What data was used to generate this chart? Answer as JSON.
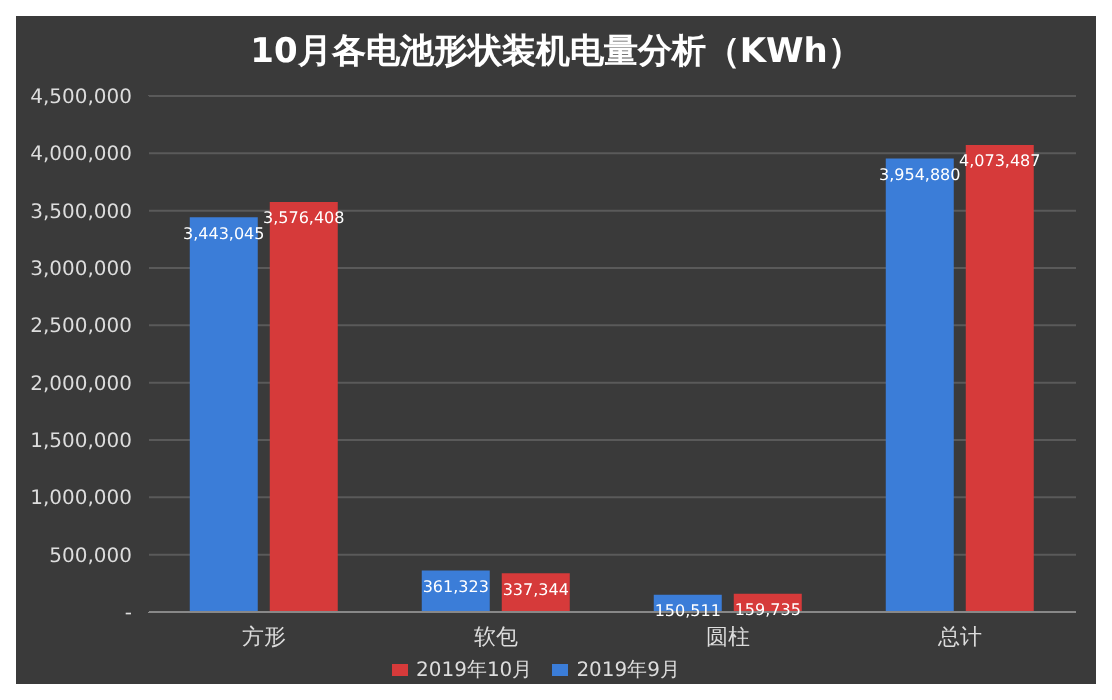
{
  "chart_data": {
    "type": "bar",
    "title": "10月各电池形状装机电量分析（KWh）",
    "categories": [
      "方形",
      "软包",
      "圆柱",
      "总计"
    ],
    "series": [
      {
        "name": "2019年9月",
        "color": "#3b7dd8",
        "values": [
          3443045,
          361323,
          150511,
          3954880
        ],
        "value_labels": [
          "3,443,045",
          "361,323",
          "150,511",
          "3,954,880"
        ]
      },
      {
        "name": "2019年10月",
        "color": "#d63a3a",
        "values": [
          3576408,
          337344,
          159735,
          4073487
        ],
        "value_labels": [
          "3,576,408",
          "337,344",
          "159,735",
          "4,073,487"
        ]
      }
    ],
    "ylim": [
      0,
      4500000
    ],
    "yticks": [
      {
        "value": 0,
        "label": "-"
      },
      {
        "value": 500000,
        "label": "500,000"
      },
      {
        "value": 1000000,
        "label": "1,000,000"
      },
      {
        "value": 1500000,
        "label": "1,500,000"
      },
      {
        "value": 2000000,
        "label": "2,000,000"
      },
      {
        "value": 2500000,
        "label": "2,500,000"
      },
      {
        "value": 3000000,
        "label": "3,000,000"
      },
      {
        "value": 3500000,
        "label": "3,500,000"
      },
      {
        "value": 4000000,
        "label": "4,000,000"
      },
      {
        "value": 4500000,
        "label": "4,500,000"
      }
    ],
    "grid": "y",
    "legend": "bottom"
  }
}
